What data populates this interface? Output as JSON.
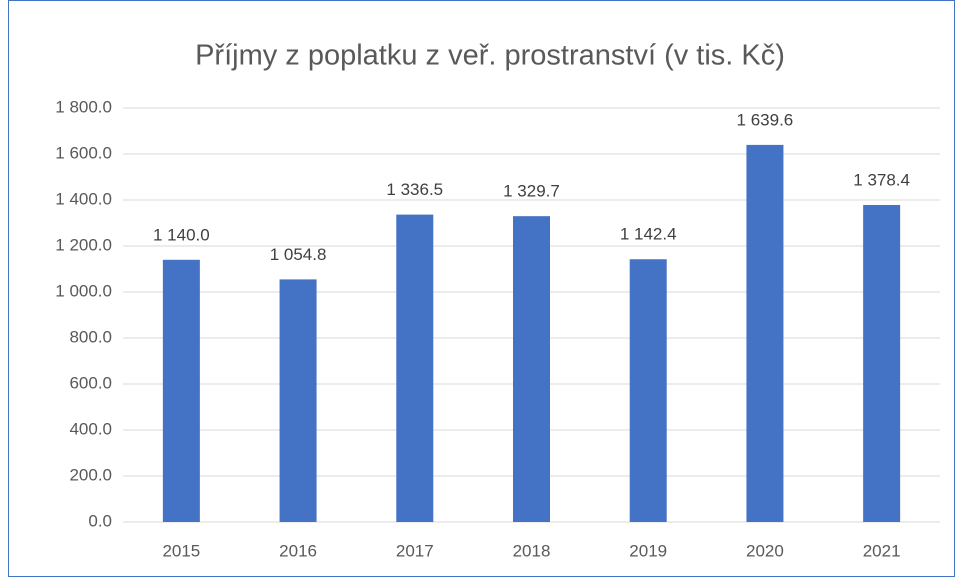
{
  "chart_data": {
    "type": "bar",
    "title": "Příjmy z poplatku z veř. prostranství (v tis. Kč)",
    "categories": [
      "2015",
      "2016",
      "2017",
      "2018",
      "2019",
      "2020",
      "2021"
    ],
    "values": [
      1140.0,
      1054.8,
      1336.5,
      1329.7,
      1142.4,
      1639.6,
      1378.4
    ],
    "value_labels": [
      "1 140.0",
      "1 054.8",
      "1 336.5",
      "1 329.7",
      "1 142.4",
      "1 639.6",
      "1 378.4"
    ],
    "color": "#4472c4",
    "ylim": [
      0,
      1800
    ],
    "yticks": [
      {
        "value": 0,
        "label": "0.0"
      },
      {
        "value": 200,
        "label": "200.0"
      },
      {
        "value": 400,
        "label": "400.0"
      },
      {
        "value": 600,
        "label": "600.0"
      },
      {
        "value": 800,
        "label": "800.0"
      },
      {
        "value": 1000,
        "label": "1 000.0"
      },
      {
        "value": 1200,
        "label": "1 200.0"
      },
      {
        "value": 1400,
        "label": "1 400.0"
      },
      {
        "value": 1600,
        "label": "1 600.0"
      },
      {
        "value": 1800,
        "label": "1 800.0"
      }
    ],
    "grid": true
  }
}
